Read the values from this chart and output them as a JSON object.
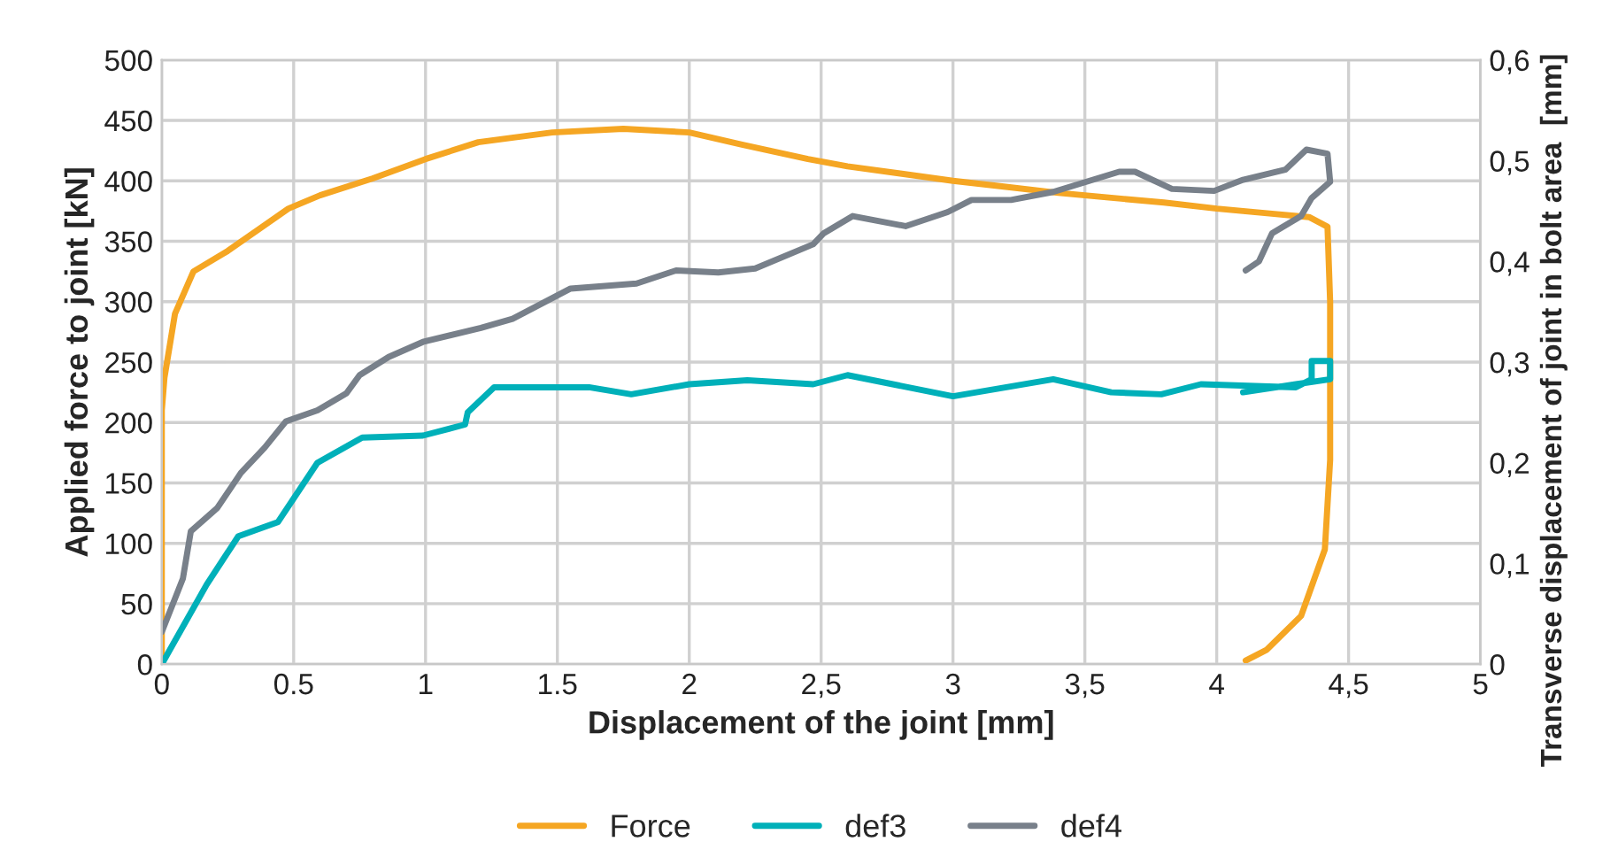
{
  "chart_data": {
    "type": "line",
    "xlabel": "Displacement of the joint [mm]",
    "ylabel": "Applied force to joint [kN]",
    "y2label": "Transverse displacement of joint in bolt area  [mm]",
    "xlim": [
      0,
      5
    ],
    "xticks": [
      0,
      {
        "value": 0.5,
        "label": "0.5"
      },
      1,
      {
        "value": 1.5,
        "label": "1.5"
      },
      2,
      {
        "value": 2.5,
        "label": "2,5"
      },
      3,
      {
        "value": 3.5,
        "label": "3,5"
      },
      4,
      {
        "value": 4.5,
        "label": "4,5"
      },
      5
    ],
    "ylim": [
      0,
      500
    ],
    "yticks": [
      0,
      50,
      100,
      150,
      200,
      250,
      300,
      350,
      400,
      450,
      500
    ],
    "y2lim": [
      0,
      0.6
    ],
    "y2ticks": [
      0,
      {
        "value": 0.1,
        "label": "0,1"
      },
      {
        "value": 0.2,
        "label": "0,2"
      },
      {
        "value": 0.3,
        "label": "0,3"
      },
      {
        "value": 0.4,
        "label": "0,4"
      },
      {
        "value": 0.5,
        "label": "0,5"
      },
      {
        "value": 0.6,
        "label": "0,6"
      }
    ],
    "grid": true,
    "legend": "bottom",
    "line_style": "solid",
    "marker": "none",
    "series": [
      {
        "name": "Force",
        "color": "#f5a623",
        "x": [
          0,
          0,
          0.01,
          0.05,
          0.12,
          0.25,
          0.48,
          0.6,
          0.8,
          1.0,
          1.2,
          1.48,
          1.75,
          2.0,
          2.2,
          2.45,
          2.6,
          2.8,
          3.0,
          3.2,
          3.4,
          3.6,
          3.8,
          4.0,
          4.2,
          4.35,
          4.42,
          4.43,
          4.43,
          4.41,
          4.32,
          4.19,
          4.11
        ],
        "values": [
          0,
          210,
          237,
          290,
          325,
          342,
          377,
          388,
          402,
          418,
          432,
          440,
          443,
          440,
          430,
          418,
          412,
          406,
          400,
          395,
          390,
          386,
          382,
          377,
          373,
          370,
          362,
          300,
          169,
          95,
          40,
          12,
          3
        ]
      },
      {
        "name": "def3",
        "color": "#00b0b9",
        "axis": "y2",
        "x": [
          0,
          0.03,
          0.17,
          0.29,
          0.44,
          0.59,
          0.76,
          0.99,
          1.15,
          1.16,
          1.26,
          1.62,
          1.78,
          2.0,
          2.22,
          2.47,
          2.6,
          3.0,
          3.38,
          3.6,
          3.79,
          3.94,
          4.3,
          4.36,
          4.36,
          4.43,
          4.43,
          4.3,
          4.1
        ],
        "values": [
          0,
          0.014,
          0.079,
          0.127,
          0.141,
          0.2,
          0.225,
          0.227,
          0.238,
          0.25,
          0.275,
          0.275,
          0.268,
          0.278,
          0.282,
          0.278,
          0.287,
          0.266,
          0.283,
          0.27,
          0.268,
          0.278,
          0.275,
          0.283,
          0.301,
          0.301,
          0.283,
          0.278,
          0.27
        ]
      },
      {
        "name": "def4",
        "color": "#78808a",
        "axis": "y2",
        "x": [
          0,
          0.08,
          0.11,
          0.21,
          0.3,
          0.39,
          0.47,
          0.59,
          0.7,
          0.75,
          0.86,
          0.99,
          1.21,
          1.33,
          1.55,
          1.8,
          1.95,
          2.11,
          2.25,
          2.47,
          2.51,
          2.62,
          2.82,
          2.98,
          3.07,
          3.22,
          3.38,
          3.63,
          3.69,
          3.83,
          3.99,
          4.1,
          4.26,
          4.34,
          4.42,
          4.43,
          4.36,
          4.32,
          4.21,
          4.16,
          4.11
        ],
        "values": [
          0.032,
          0.085,
          0.132,
          0.155,
          0.19,
          0.215,
          0.241,
          0.252,
          0.269,
          0.287,
          0.305,
          0.32,
          0.334,
          0.343,
          0.373,
          0.378,
          0.391,
          0.389,
          0.393,
          0.417,
          0.428,
          0.445,
          0.435,
          0.449,
          0.461,
          0.461,
          0.469,
          0.489,
          0.489,
          0.472,
          0.47,
          0.481,
          0.491,
          0.511,
          0.507,
          0.479,
          0.463,
          0.445,
          0.428,
          0.4,
          0.391
        ]
      }
    ]
  }
}
